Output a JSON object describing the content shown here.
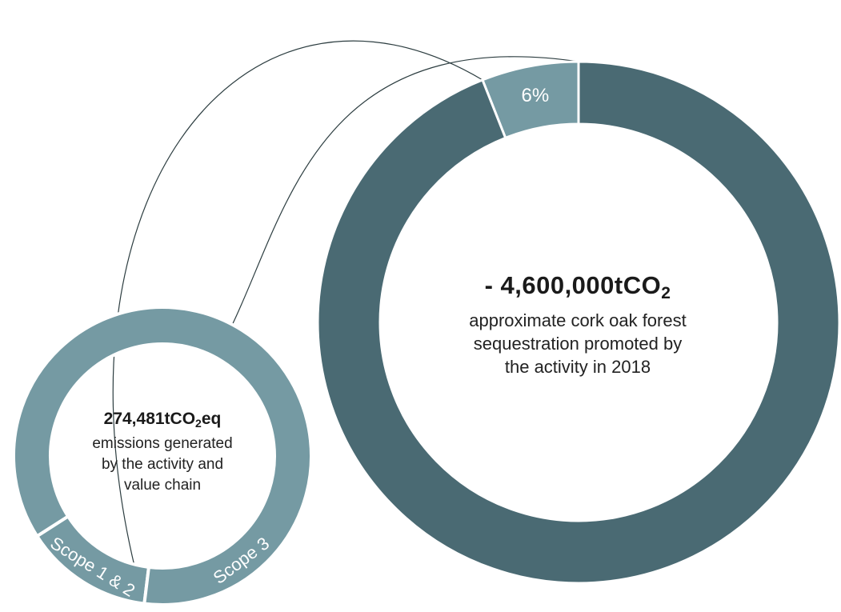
{
  "chart_data": [
    {
      "type": "pie",
      "slices": [
        {
          "label": "6%",
          "value": 6
        },
        {
          "label": "",
          "value": 94
        }
      ],
      "center": {
        "value_prefix": "- 4,600,000tCO",
        "value_sub": "2",
        "caption_lines": [
          "approximate cork oak forest",
          "sequestration promoted by",
          "the activity in 2018"
        ]
      }
    },
    {
      "type": "pie",
      "slices": [
        {
          "label": "Scope 1 & 2",
          "value": 14
        },
        {
          "label": "Scope 3",
          "value": 86
        }
      ],
      "center": {
        "value_prefix": "274,481tCO",
        "value_sub": "2",
        "value_suffix": "eq",
        "caption_lines": [
          "emissions generated",
          "by the activity and",
          "value chain"
        ]
      }
    }
  ],
  "colors": {
    "dark_teal": "#4a6a73",
    "light_teal": "#759aa3",
    "connector": "#2c3d40",
    "slice_text": "#ffffff"
  }
}
